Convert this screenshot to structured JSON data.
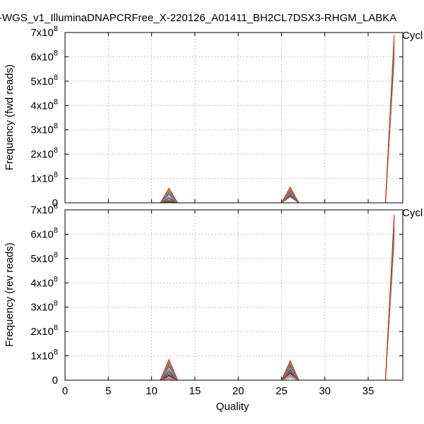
{
  "title": "-WGS_v1_IlluminaDNAPCRFree_X-220126_A01411_BH2CL7DSX3-RHGM_LABKA",
  "xlabel": "Quality",
  "legend_label": "Cycl",
  "y_exponent": "8",
  "colors": [
    "#e41a1c",
    "#ff7f00",
    "#4daf4a",
    "#377eb8",
    "#984ea3",
    "#a65628",
    "#f781bf",
    "#17becf",
    "#1f3b8a",
    "#2ca02c",
    "#d62728",
    "#9467bd",
    "#000000",
    "#8c564b",
    "#bcbd22",
    "#e377c2",
    "#7f7f7f",
    "#ff9896",
    "#aec7e8",
    "#1b9e77"
  ],
  "chart_data": [
    {
      "type": "line",
      "panel": "top",
      "ylabel": "Frequency (fwd reads)",
      "xlim": [
        0,
        39
      ],
      "ylim": [
        0,
        700000000
      ],
      "xticks": [
        0,
        5,
        10,
        15,
        20,
        25,
        30,
        35
      ],
      "yticks": [
        {
          "value": 0,
          "label": "0",
          "exp": ""
        },
        {
          "value": 100000000,
          "label": "1x10",
          "exp": "8"
        },
        {
          "value": 200000000,
          "label": "2x10",
          "exp": "8"
        },
        {
          "value": 300000000,
          "label": "3x10",
          "exp": "8"
        },
        {
          "value": 400000000,
          "label": "4x10",
          "exp": "8"
        },
        {
          "value": 500000000,
          "label": "5x10",
          "exp": "8"
        },
        {
          "value": 600000000,
          "label": "6x10",
          "exp": "8"
        },
        {
          "value": 700000000,
          "label": "7x10",
          "exp": "8"
        }
      ],
      "grid": true,
      "x": [
        11,
        12,
        13,
        25,
        26,
        27,
        37,
        38
      ],
      "peaks_q12": [
        60000000,
        55000000,
        50000000,
        45000000,
        40000000,
        35000000,
        30000000,
        25000000,
        20000000,
        15000000,
        10000000,
        8000000,
        6000000,
        5000000,
        4000000,
        3000000,
        2500000,
        2000000,
        1500000,
        1000000
      ],
      "peaks_q26": [
        65000000,
        60000000,
        56000000,
        52000000,
        48000000,
        45000000,
        42000000,
        40000000,
        38000000,
        36000000,
        34000000,
        32000000,
        30000000,
        29000000,
        28000000,
        27000000,
        26000000,
        25000000,
        24000000,
        23000000
      ],
      "peaks_q38": [
        690000000,
        680000000,
        670000000,
        665000000,
        660000000,
        655000000,
        650000000,
        645000000,
        640000000,
        635000000,
        630000000,
        625000000,
        620000000,
        615000000,
        610000000,
        605000000,
        600000000,
        595000000,
        590000000,
        585000000
      ]
    },
    {
      "type": "line",
      "panel": "bottom",
      "ylabel": "Frequency (rev reads)",
      "xlim": [
        0,
        39
      ],
      "ylim": [
        0,
        700000000
      ],
      "xticks": [
        0,
        5,
        10,
        15,
        20,
        25,
        30,
        35
      ],
      "yticks": [
        {
          "value": 0,
          "label": "0",
          "exp": ""
        },
        {
          "value": 100000000,
          "label": "1x10",
          "exp": "8"
        },
        {
          "value": 200000000,
          "label": "2x10",
          "exp": "8"
        },
        {
          "value": 300000000,
          "label": "3x10",
          "exp": "8"
        },
        {
          "value": 400000000,
          "label": "4x10",
          "exp": "8"
        },
        {
          "value": 500000000,
          "label": "5x10",
          "exp": "8"
        },
        {
          "value": 600000000,
          "label": "6x10",
          "exp": "8"
        },
        {
          "value": 700000000,
          "label": "7x10",
          "exp": "8"
        }
      ],
      "grid": true,
      "x": [
        11,
        12,
        13,
        25,
        26,
        27,
        37,
        38
      ],
      "peaks_q12": [
        85000000,
        80000000,
        74000000,
        68000000,
        62000000,
        56000000,
        50000000,
        44000000,
        38000000,
        33000000,
        28000000,
        24000000,
        20000000,
        16000000,
        12000000,
        9000000,
        7000000,
        5000000,
        3000000,
        2000000
      ],
      "peaks_q26": [
        80000000,
        75000000,
        70000000,
        65000000,
        60000000,
        56000000,
        52000000,
        48000000,
        44000000,
        40000000,
        36000000,
        33000000,
        30000000,
        27000000,
        24000000,
        21000000,
        18000000,
        15000000,
        12000000,
        10000000
      ],
      "peaks_q38": [
        680000000,
        675000000,
        670000000,
        665000000,
        660000000,
        655000000,
        650000000,
        645000000,
        640000000,
        635000000,
        630000000,
        625000000,
        620000000,
        615000000,
        610000000,
        600000000,
        590000000,
        580000000,
        570000000,
        560000000
      ]
    }
  ]
}
